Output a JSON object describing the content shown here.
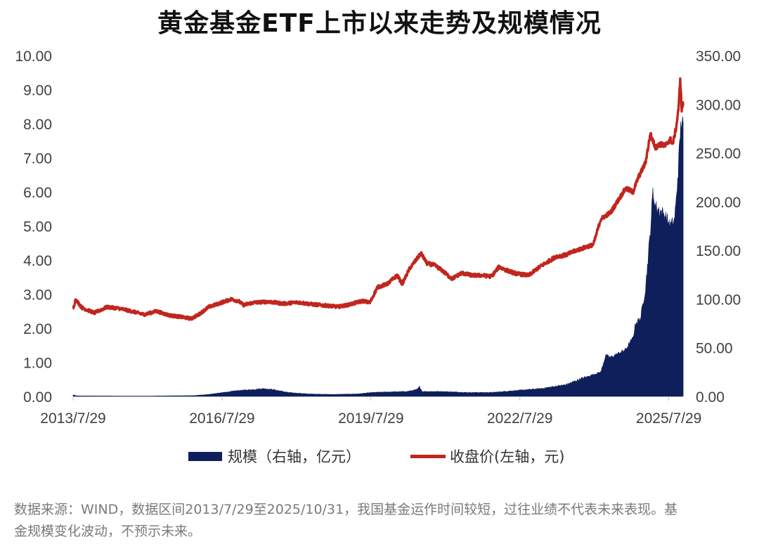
{
  "chart_data": {
    "type": "line+area",
    "title": "黄金基金ETF上市以来走势及规模情况",
    "x_ticks": [
      "2013/7/29",
      "2016/7/29",
      "2019/7/29",
      "2022/7/29",
      "2025/7/29"
    ],
    "x_range": [
      2013.57,
      2025.83
    ],
    "y_left": {
      "ticks": [
        "10.00",
        "9.00",
        "8.00",
        "7.00",
        "6.00",
        "5.00",
        "4.00",
        "3.00",
        "2.00",
        "1.00",
        "0.00"
      ],
      "range": [
        0,
        10
      ],
      "unit": "元"
    },
    "y_right": {
      "ticks": [
        "350.00",
        "300.00",
        "250.00",
        "200.00",
        "150.00",
        "100.00",
        "50.00",
        "0.00"
      ],
      "range": [
        0,
        350
      ],
      "unit": "亿元"
    },
    "series": [
      {
        "name": "规模（右轴，亿元）",
        "type": "area",
        "axis": "right",
        "color": "#0f1f5c",
        "points": [
          [
            2013.57,
            1.5
          ],
          [
            2013.65,
            0.5
          ],
          [
            2015.0,
            0.3
          ],
          [
            2016.0,
            0.8
          ],
          [
            2016.3,
            2.0
          ],
          [
            2016.6,
            4.0
          ],
          [
            2016.9,
            6.0
          ],
          [
            2017.2,
            7.0
          ],
          [
            2017.4,
            8.0
          ],
          [
            2017.6,
            7.0
          ],
          [
            2017.9,
            4.0
          ],
          [
            2018.3,
            2.5
          ],
          [
            2018.8,
            2.0
          ],
          [
            2019.3,
            2.5
          ],
          [
            2019.6,
            4.0
          ],
          [
            2019.9,
            4.5
          ],
          [
            2020.3,
            5.0
          ],
          [
            2020.5,
            7.0
          ],
          [
            2020.55,
            10.0
          ],
          [
            2020.6,
            5.0
          ],
          [
            2021.0,
            5.0
          ],
          [
            2021.5,
            4.0
          ],
          [
            2022.0,
            4.0
          ],
          [
            2022.5,
            6.0
          ],
          [
            2023.0,
            8.0
          ],
          [
            2023.5,
            12.0
          ],
          [
            2023.8,
            18.0
          ],
          [
            2024.2,
            25.0
          ],
          [
            2024.3,
            42.0
          ],
          [
            2024.4,
            40.0
          ],
          [
            2024.7,
            48.0
          ],
          [
            2024.85,
            60.0
          ],
          [
            2024.9,
            75.0
          ],
          [
            2025.0,
            80.0
          ],
          [
            2025.1,
            110.0
          ],
          [
            2025.15,
            140.0
          ],
          [
            2025.2,
            170.0
          ],
          [
            2025.25,
            210.0
          ],
          [
            2025.3,
            195.0
          ],
          [
            2025.4,
            190.0
          ],
          [
            2025.5,
            185.0
          ],
          [
            2025.6,
            175.0
          ],
          [
            2025.68,
            180.0
          ],
          [
            2025.72,
            200.0
          ],
          [
            2025.75,
            225.0
          ],
          [
            2025.78,
            250.0
          ],
          [
            2025.8,
            270.0
          ],
          [
            2025.83,
            285.0
          ],
          [
            2025.86,
            275.0
          ]
        ]
      },
      {
        "name": "收盘价(左轴，元)",
        "type": "line",
        "axis": "left",
        "color": "#c0261e",
        "points": [
          [
            2013.57,
            2.55
          ],
          [
            2013.62,
            2.85
          ],
          [
            2013.75,
            2.6
          ],
          [
            2014.0,
            2.45
          ],
          [
            2014.25,
            2.62
          ],
          [
            2014.5,
            2.58
          ],
          [
            2014.8,
            2.48
          ],
          [
            2015.0,
            2.4
          ],
          [
            2015.25,
            2.5
          ],
          [
            2015.5,
            2.38
          ],
          [
            2015.75,
            2.33
          ],
          [
            2015.95,
            2.28
          ],
          [
            2016.1,
            2.4
          ],
          [
            2016.3,
            2.62
          ],
          [
            2016.5,
            2.72
          ],
          [
            2016.75,
            2.85
          ],
          [
            2016.9,
            2.8
          ],
          [
            2017.0,
            2.68
          ],
          [
            2017.2,
            2.75
          ],
          [
            2017.5,
            2.78
          ],
          [
            2017.8,
            2.72
          ],
          [
            2018.1,
            2.76
          ],
          [
            2018.4,
            2.7
          ],
          [
            2018.7,
            2.66
          ],
          [
            2018.9,
            2.63
          ],
          [
            2019.1,
            2.68
          ],
          [
            2019.4,
            2.8
          ],
          [
            2019.55,
            2.75
          ],
          [
            2019.7,
            3.2
          ],
          [
            2019.9,
            3.3
          ],
          [
            2020.1,
            3.55
          ],
          [
            2020.2,
            3.3
          ],
          [
            2020.35,
            3.75
          ],
          [
            2020.58,
            4.2
          ],
          [
            2020.7,
            3.9
          ],
          [
            2020.85,
            3.85
          ],
          [
            2021.0,
            3.7
          ],
          [
            2021.2,
            3.45
          ],
          [
            2021.4,
            3.62
          ],
          [
            2021.6,
            3.55
          ],
          [
            2021.8,
            3.55
          ],
          [
            2022.0,
            3.52
          ],
          [
            2022.15,
            3.8
          ],
          [
            2022.3,
            3.7
          ],
          [
            2022.5,
            3.6
          ],
          [
            2022.75,
            3.55
          ],
          [
            2022.95,
            3.78
          ],
          [
            2023.1,
            3.92
          ],
          [
            2023.3,
            4.1
          ],
          [
            2023.5,
            4.15
          ],
          [
            2023.7,
            4.28
          ],
          [
            2023.9,
            4.38
          ],
          [
            2024.05,
            4.45
          ],
          [
            2024.2,
            5.2
          ],
          [
            2024.4,
            5.4
          ],
          [
            2024.55,
            5.75
          ],
          [
            2024.7,
            6.1
          ],
          [
            2024.85,
            6.0
          ],
          [
            2024.95,
            6.4
          ],
          [
            2025.1,
            6.85
          ],
          [
            2025.2,
            7.7
          ],
          [
            2025.3,
            7.3
          ],
          [
            2025.4,
            7.4
          ],
          [
            2025.5,
            7.35
          ],
          [
            2025.6,
            7.55
          ],
          [
            2025.65,
            7.4
          ],
          [
            2025.72,
            7.9
          ],
          [
            2025.77,
            8.5
          ],
          [
            2025.8,
            9.35
          ],
          [
            2025.83,
            8.4
          ],
          [
            2025.86,
            8.6
          ]
        ]
      }
    ]
  },
  "legend": {
    "scale_label": "规模（右轴，亿元）",
    "price_label": "收盘价(左轴，元)"
  },
  "source_note": "数据来源：WIND，数据区间2013/7/29至2025/10/31，我国基金运作时间较短，过往业绩不代表未来表现。基金规模变化波动，不预示未来。",
  "colors": {
    "scale": "#0f1f5c",
    "price": "#c0261e"
  }
}
